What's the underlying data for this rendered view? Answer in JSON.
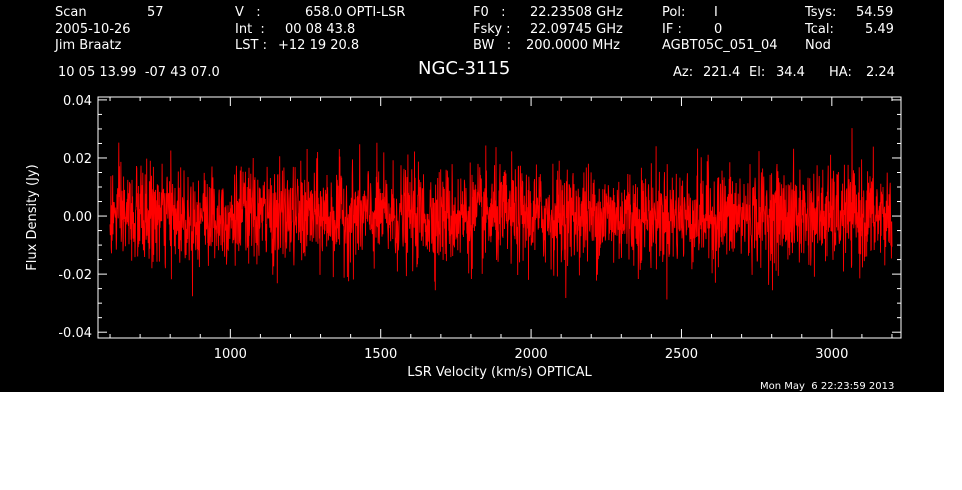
{
  "header": {
    "scan_label": "Scan",
    "scan_number": "57",
    "date": "2005-10-26",
    "observer": "Jim Braatz",
    "v_label": "V   :",
    "v_value": "658.0 OPTI-LSR",
    "int_label": "Int  :",
    "int_value": "00 08 43.8",
    "lst_label": "LST :",
    "lst_value": "+12 19 20.8",
    "f0_label": "F0   :",
    "f0_value": "22.23508 GHz",
    "fsky_label": "Fsky :",
    "fsky_value": "22.09745 GHz",
    "bw_label": "BW   :",
    "bw_value": "200.0000 MHz",
    "pol_label": "Pol:",
    "pol_value": "I",
    "if_label": "IF :",
    "if_value": "0",
    "project": "AGBT05C_051_04",
    "tsys_label": "Tsys:",
    "tsys_value": "54.59",
    "tcal_label": "Tcal:",
    "tcal_value": "5.49",
    "procedure": "Nod",
    "coords": "10 05 13.99  -07 43 07.0",
    "source": "NGC-3115",
    "az_label": "Az:",
    "az_value": "221.4",
    "el_label": "El:",
    "el_value": "34.4",
    "ha_label": "HA:",
    "ha_value": "2.24"
  },
  "timestamp": "Mon May  6 22:23:59 2013",
  "colors": {
    "background": "#000000",
    "axes": "#ffffff",
    "trace": "#ff0000"
  },
  "chart_data": {
    "type": "line",
    "title": "NGC-3115",
    "xlabel": "LSR Velocity (km/s) OPTICAL",
    "ylabel": "Flux Density (Jy)",
    "xlim": [
      560,
      3230
    ],
    "ylim": [
      -0.042,
      0.041
    ],
    "xticks": [
      1000,
      1500,
      2000,
      2500,
      3000
    ],
    "xtick_labels": [
      "1000",
      "1500",
      "2000",
      "2500",
      "3000"
    ],
    "yticks": [
      -0.04,
      -0.02,
      0.0,
      0.02,
      0.04
    ],
    "ytick_labels": [
      "-0.04",
      "-0.02",
      "0.00",
      "0.02",
      "0.04"
    ],
    "grid": false,
    "series": [
      {
        "color": "#ff0000",
        "x_range": [
          600,
          3200
        ],
        "mean": 0.0,
        "noise_rms": 0.0085,
        "points_approx": 2600
      }
    ]
  }
}
